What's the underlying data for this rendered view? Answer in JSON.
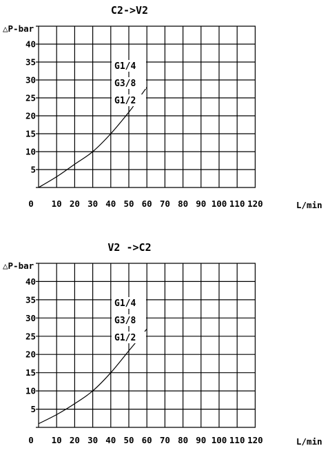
{
  "chart_data": [
    {
      "type": "line",
      "title": "C2->V2",
      "xlabel": "L/min",
      "ylabel": "△P-bar",
      "x_ticks": [
        "0",
        "10",
        "20",
        "30",
        "40",
        "50",
        "60",
        "70",
        "80",
        "90",
        "100",
        "110",
        "120"
      ],
      "y_ticks": [
        "5",
        "10",
        "15",
        "20",
        "25",
        "30",
        "35",
        "40"
      ],
      "xlim": [
        0,
        120
      ],
      "ylim": [
        0,
        45
      ],
      "grid": true,
      "curve_labels": [
        "G1/4",
        "G3/8",
        "G1/2"
      ],
      "series": [
        {
          "x": [
            0,
            10,
            20,
            30,
            40,
            50,
            55,
            60
          ],
          "y": [
            0,
            3,
            6.5,
            10,
            15,
            21,
            24.5,
            28
          ]
        }
      ]
    },
    {
      "type": "line",
      "title": "V2 ->C2",
      "xlabel": "L/min",
      "ylabel": "△P-bar",
      "x_ticks": [
        "0",
        "10",
        "20",
        "30",
        "40",
        "50",
        "60",
        "70",
        "80",
        "90",
        "100",
        "110",
        "120"
      ],
      "y_ticks": [
        "5",
        "10",
        "15",
        "20",
        "25",
        "30",
        "35",
        "40"
      ],
      "xlim": [
        0,
        120
      ],
      "ylim": [
        0,
        45
      ],
      "grid": true,
      "curve_labels": [
        "G1/4",
        "G3/8",
        "G1/2"
      ],
      "series": [
        {
          "x": [
            0,
            10,
            20,
            30,
            40,
            50,
            55,
            60
          ],
          "y": [
            1,
            3.5,
            6.5,
            10,
            15,
            21,
            24,
            27
          ]
        }
      ]
    }
  ]
}
